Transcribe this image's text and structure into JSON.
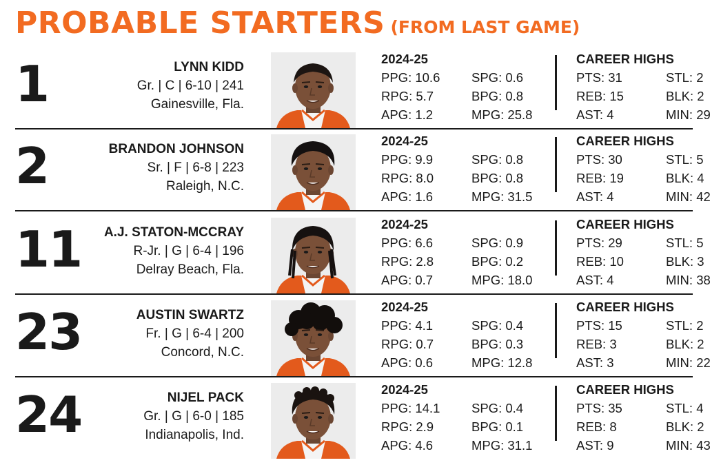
{
  "header": {
    "title": "PROBABLE STARTERS",
    "subtitle": "(FROM LAST GAME)"
  },
  "accent_color": "#f26b21",
  "players": [
    {
      "number": "1",
      "name": "LYNN KIDD",
      "info": "Gr. | C | 6-10 | 241",
      "hometown": "Gainesville, Fla.",
      "season": "2024-25",
      "ppg": "PPG: 10.6",
      "rpg": "RPG: 5.7",
      "apg": "APG: 1.2",
      "spg": "SPG: 0.6",
      "bpg": "BPG: 0.8",
      "mpg": "MPG: 25.8",
      "career_title": "CAREER HIGHS",
      "pts": "PTS: 31",
      "reb": "REB: 15",
      "ast": "AST: 4",
      "stl": "STL: 2",
      "blk": "BLK: 2",
      "min": "MIN: 29",
      "hair": "short"
    },
    {
      "number": "2",
      "name": "BRANDON JOHNSON",
      "info": "Sr. | F | 6-8 | 223",
      "hometown": "Raleigh, N.C.",
      "season": "2024-25",
      "ppg": "PPG: 9.9",
      "rpg": "RPG: 8.0",
      "apg": "APG: 1.6",
      "spg": "SPG: 0.8",
      "bpg": "BPG: 0.8",
      "mpg": "MPG: 31.5",
      "career_title": "CAREER HIGHS",
      "pts": "PTS: 30",
      "reb": "REB: 19",
      "ast": "AST: 4",
      "stl": "STL: 5",
      "blk": "BLK: 4",
      "min": "MIN: 42",
      "hair": "medium"
    },
    {
      "number": "11",
      "name": "A.J. STATON-MCCRAY",
      "info": "R-Jr. | G | 6-4 | 196",
      "hometown": "Delray Beach, Fla.",
      "season": "2024-25",
      "ppg": "PPG:  6.6",
      "rpg": "RPG: 2.8",
      "apg": "APG: 0.7",
      "spg": "SPG: 0.9",
      "bpg": "BPG: 0.2",
      "mpg": "MPG: 18.0",
      "career_title": "CAREER HIGHS",
      "pts": "PTS: 29",
      "reb": "REB: 10",
      "ast": "AST: 4",
      "stl": "STL: 5",
      "blk": "BLK: 3",
      "min": "MIN: 38",
      "hair": "locs"
    },
    {
      "number": "23",
      "name": "AUSTIN SWARTZ",
      "info": "Fr. | G | 6-4 | 200",
      "hometown": "Concord, N.C.",
      "season": "2024-25",
      "ppg": "PPG: 4.1",
      "rpg": "RPG: 0.7",
      "apg": "APG: 0.6",
      "spg": "SPG: 0.4",
      "bpg": "BPG: 0.3",
      "mpg": "MPG: 12.8",
      "career_title": "CAREER HIGHS",
      "pts": "PTS: 15",
      "reb": "REB: 3",
      "ast": "AST: 3",
      "stl": "STL: 2",
      "blk": "BLK: 2",
      "min": "MIN: 22",
      "hair": "curly"
    },
    {
      "number": "24",
      "name": "NIJEL PACK",
      "info": "Gr. | G | 6-0 | 185",
      "hometown": "Indianapolis, Ind.",
      "season": "2024-25",
      "ppg": "PPG:  14.1",
      "rpg": "RPG: 2.9",
      "apg": "APG: 4.6",
      "spg": "SPG: 0.4",
      "bpg": "BPG: 0.1",
      "mpg": "MPG: 31.1",
      "career_title": "CAREER HIGHS",
      "pts": "PTS: 35",
      "reb": "REB: 8",
      "ast": "AST: 9",
      "stl": "STL: 4",
      "blk": "BLK: 2",
      "min": "MIN: 43",
      "hair": "twists"
    }
  ]
}
